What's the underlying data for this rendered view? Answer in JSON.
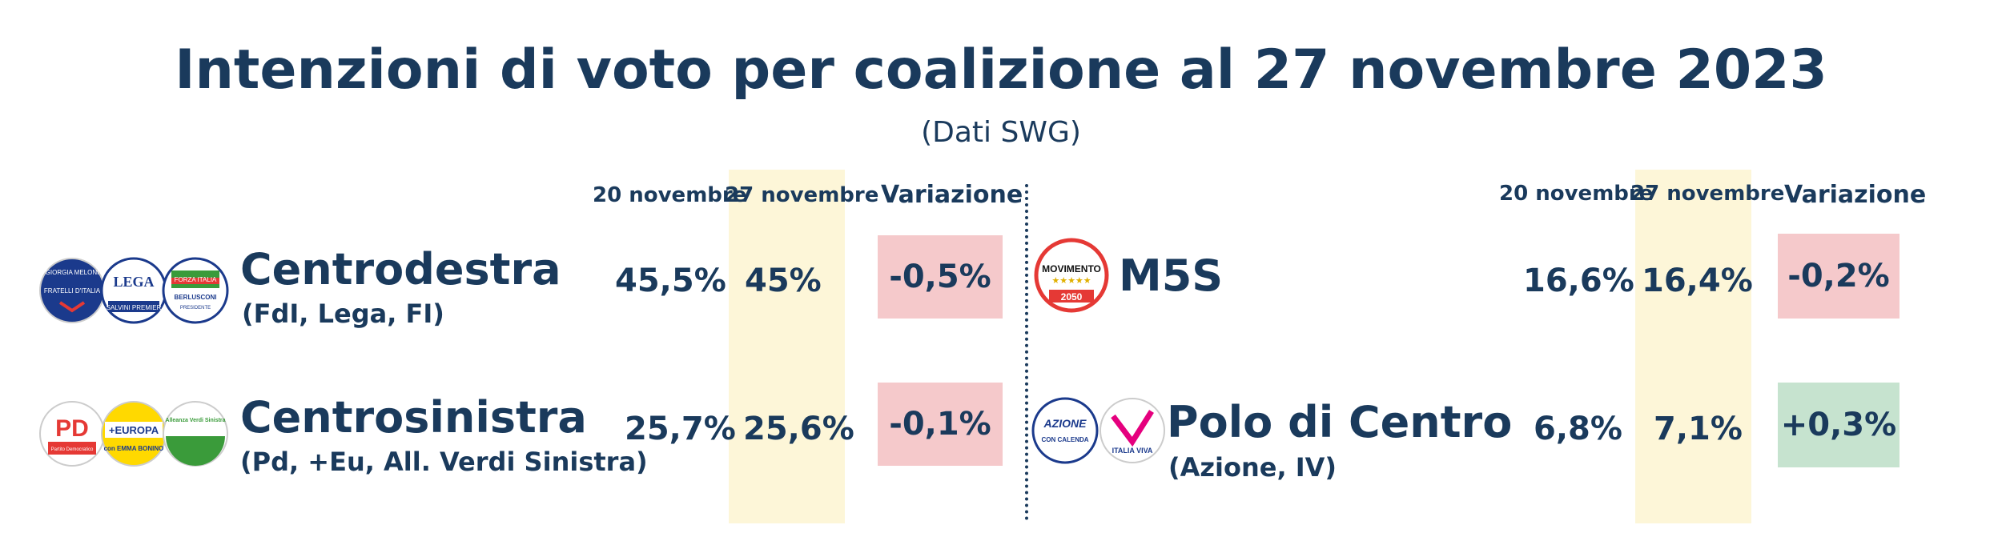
{
  "title": "Intenzioni di voto per coalizione al 27 novembre 2023",
  "subtitle": "(Dati SWG)",
  "headers": {
    "prev": "20 novembre",
    "curr": "27 novembre",
    "change": "Variazione"
  },
  "left": [
    {
      "name": "Centrodestra",
      "members": "(FdI, Lega, FI)",
      "prev": "45,5%",
      "curr": "45%",
      "change": "-0,5%",
      "logos": [
        "GIORGIA MELONI",
        "FRATELLI D'ITALIA",
        "LEGA",
        "SALVINI PREMIER",
        "FORZA ITALIA",
        "BERLUSCONI",
        "PRESIDENTE"
      ]
    },
    {
      "name": "Centrosinistra",
      "members": "(Pd, +Eu, All. Verdi Sinistra)",
      "prev": "25,7%",
      "curr": "25,6%",
      "change": "-0,1%",
      "logos": [
        "PD",
        "Partito Democratico",
        "+EUROPA",
        "con EMMA BONINO",
        "Alleanza Verdi Sinistra"
      ]
    }
  ],
  "right": [
    {
      "name": "M5S",
      "members": "",
      "prev": "16,6%",
      "curr": "16,4%",
      "change": "-0,2%",
      "logos": [
        "MOVIMENTO",
        "2050"
      ]
    },
    {
      "name": "Polo di Centro",
      "members": "(Azione, IV)",
      "prev": "6,8%",
      "curr": "7,1%",
      "change": "+0,3%",
      "logos": [
        "AZIONE",
        "CON CALENDA",
        "ITALIA VIVA"
      ]
    }
  ],
  "colors": {
    "text": "#1a3a5c",
    "highlight": "#fdf6d8",
    "negative": "#f5c9cb",
    "positive": "#c6e3cf"
  }
}
